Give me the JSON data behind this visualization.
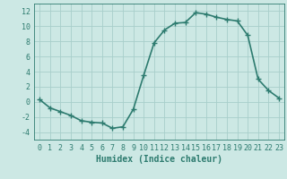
{
  "x": [
    0,
    1,
    2,
    3,
    4,
    5,
    6,
    7,
    8,
    9,
    10,
    11,
    12,
    13,
    14,
    15,
    16,
    17,
    18,
    19,
    20,
    21,
    22,
    23
  ],
  "y": [
    0.3,
    -0.8,
    -1.3,
    -1.8,
    -2.5,
    -2.7,
    -2.8,
    -3.5,
    -3.3,
    -1.0,
    3.5,
    7.8,
    9.5,
    10.4,
    10.5,
    11.8,
    11.6,
    11.2,
    10.9,
    10.7,
    8.8,
    3.0,
    1.5,
    0.5
  ],
  "line_color": "#2d7b6f",
  "marker": "+",
  "marker_size": 4,
  "bg_color": "#cce8e4",
  "grid_color": "#a8ceca",
  "xlabel": "Humidex (Indice chaleur)",
  "xlim": [
    -0.5,
    23.5
  ],
  "ylim": [
    -5,
    13
  ],
  "yticks": [
    -4,
    -2,
    0,
    2,
    4,
    6,
    8,
    10,
    12
  ],
  "xticks": [
    0,
    1,
    2,
    3,
    4,
    5,
    6,
    7,
    8,
    9,
    10,
    11,
    12,
    13,
    14,
    15,
    16,
    17,
    18,
    19,
    20,
    21,
    22,
    23
  ],
  "tick_label_fontsize": 6,
  "xlabel_fontsize": 7,
  "linewidth": 1.2
}
